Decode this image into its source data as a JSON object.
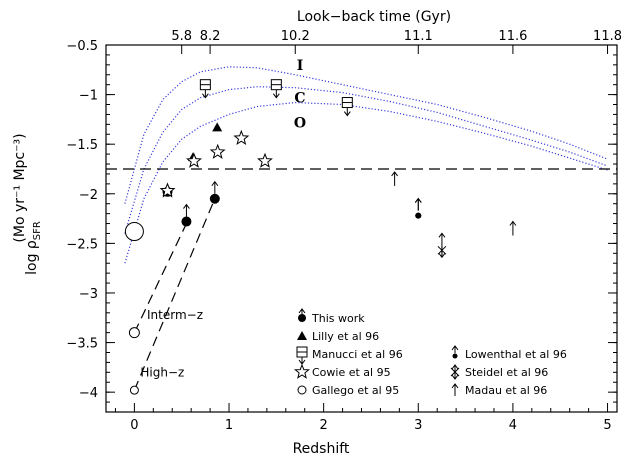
{
  "chart_data": {
    "type": "scatter",
    "title": "",
    "xlabel": "Redshift",
    "ylabel": "log ρ",
    "ylabel_sub": "SFR",
    "ylabel_units": "(Mo yr⁻¹ Mpc⁻³)",
    "top_xlabel": "Look−back time (Gyr)",
    "xlim": [
      -0.3,
      5.1
    ],
    "ylim": [
      -4.2,
      -0.5
    ],
    "x_ticks": [
      0,
      1,
      2,
      3,
      4,
      5
    ],
    "x_tick_labels": [
      "0",
      "1",
      "2",
      "3",
      "4",
      "5"
    ],
    "y_ticks": [
      -0.5,
      -1,
      -1.5,
      -2,
      -2.5,
      -3,
      -3.5,
      -4
    ],
    "y_tick_labels": [
      "−0.5",
      "−1",
      "−1.5",
      "−2",
      "−2.5",
      "−3",
      "−3.5",
      "−4"
    ],
    "top_ticks": [
      {
        "z": 0.5,
        "label": "5.8"
      },
      {
        "z": 0.8,
        "label": "8.2"
      },
      {
        "z": 1.7,
        "label": "10.2"
      },
      {
        "z": 3.0,
        "label": "11.1"
      },
      {
        "z": 4.0,
        "label": "11.6"
      },
      {
        "z": 5.0,
        "label": "11.8"
      }
    ],
    "reference_line": {
      "y": -1.75,
      "style": "dashed"
    },
    "curves": [
      {
        "label": "I",
        "label_at": [
          1.75,
          -0.7
        ],
        "points": [
          [
            -0.1,
            -2.1
          ],
          [
            0.1,
            -1.4
          ],
          [
            0.3,
            -1.05
          ],
          [
            0.5,
            -0.87
          ],
          [
            0.7,
            -0.77
          ],
          [
            1.0,
            -0.72
          ],
          [
            1.3,
            -0.73
          ],
          [
            1.7,
            -0.8
          ],
          [
            2.2,
            -0.9
          ],
          [
            2.7,
            -1.0
          ],
          [
            3.2,
            -1.1
          ],
          [
            3.7,
            -1.23
          ],
          [
            4.2,
            -1.37
          ],
          [
            4.6,
            -1.5
          ],
          [
            5.0,
            -1.65
          ]
        ]
      },
      {
        "label": "C",
        "label_at": [
          1.75,
          -1.03
        ],
        "points": [
          [
            -0.1,
            -2.4
          ],
          [
            0.1,
            -1.75
          ],
          [
            0.3,
            -1.38
          ],
          [
            0.5,
            -1.15
          ],
          [
            0.7,
            -1.03
          ],
          [
            1.0,
            -0.95
          ],
          [
            1.3,
            -0.92
          ],
          [
            1.7,
            -0.93
          ],
          [
            2.2,
            -0.98
          ],
          [
            2.7,
            -1.07
          ],
          [
            3.2,
            -1.18
          ],
          [
            3.7,
            -1.32
          ],
          [
            4.2,
            -1.46
          ],
          [
            4.6,
            -1.58
          ],
          [
            5.0,
            -1.72
          ]
        ]
      },
      {
        "label": "O",
        "label_at": [
          1.75,
          -1.28
        ],
        "points": [
          [
            -0.1,
            -2.7
          ],
          [
            0.1,
            -2.05
          ],
          [
            0.3,
            -1.68
          ],
          [
            0.5,
            -1.45
          ],
          [
            0.7,
            -1.32
          ],
          [
            1.0,
            -1.2
          ],
          [
            1.3,
            -1.12
          ],
          [
            1.7,
            -1.08
          ],
          [
            2.2,
            -1.1
          ],
          [
            2.7,
            -1.17
          ],
          [
            3.2,
            -1.27
          ],
          [
            3.7,
            -1.39
          ],
          [
            4.2,
            -1.52
          ],
          [
            4.6,
            -1.64
          ],
          [
            5.0,
            -1.76
          ]
        ]
      }
    ],
    "extrapolations": [
      {
        "label": "Interm−z",
        "points": [
          [
            0.0,
            -3.4
          ],
          [
            0.55,
            -2.3
          ]
        ],
        "label_at": [
          0.07,
          -3.22
        ]
      },
      {
        "label": "High−z",
        "points": [
          [
            0.0,
            -3.98
          ],
          [
            0.85,
            -2.05
          ]
        ],
        "label_at": [
          0.0,
          -3.8
        ]
      }
    ],
    "series": [
      {
        "name": "This work",
        "marker": "filled-circle",
        "points": [
          {
            "x": 0.35,
            "y": -1.98,
            "r": 5
          },
          {
            "x": 0.55,
            "y": -2.28,
            "r": 5,
            "arrow": "up"
          },
          {
            "x": 0.85,
            "y": -2.05,
            "r": 5,
            "arrow": "up"
          },
          {
            "x": 3.0,
            "y": -2.22,
            "r": 3,
            "arrow": "up"
          }
        ]
      },
      {
        "name": "Lilly et al 96",
        "marker": "filled-triangle",
        "points": [
          {
            "x": 0.35,
            "y": -1.98
          },
          {
            "x": 0.62,
            "y": -1.63
          },
          {
            "x": 0.875,
            "y": -1.33
          }
        ]
      },
      {
        "name": "Manucci et al 96",
        "marker": "open-square",
        "points": [
          {
            "x": 0.75,
            "y": -0.9,
            "arrow": "down"
          },
          {
            "x": 1.5,
            "y": -0.9,
            "arrow": "down"
          },
          {
            "x": 2.25,
            "y": -1.08,
            "arrow": "down"
          }
        ]
      },
      {
        "name": "Cowie et al 95",
        "marker": "open-star",
        "points": [
          {
            "x": 0.35,
            "y": -1.97
          },
          {
            "x": 0.63,
            "y": -1.67
          },
          {
            "x": 0.88,
            "y": -1.58
          },
          {
            "x": 1.13,
            "y": -1.44
          },
          {
            "x": 1.38,
            "y": -1.67
          }
        ]
      },
      {
        "name": "Gallego et al 95",
        "marker": "open-circle",
        "points": [
          {
            "x": 0.0,
            "y": -2.38,
            "r": 9
          },
          {
            "x": 0.0,
            "y": -3.4,
            "r": 5
          },
          {
            "x": 0.0,
            "y": -3.98,
            "r": 4
          }
        ]
      },
      {
        "name": "Lowenthal et al 96",
        "marker": "small-filled-circle",
        "points": [
          {
            "x": 3.0,
            "y": -2.22,
            "arrow": "up"
          }
        ]
      },
      {
        "name": "Steidel et al 96",
        "marker": "cross-star",
        "points": [
          {
            "x": 3.25,
            "y": -2.57,
            "arrow": "both"
          }
        ]
      },
      {
        "name": "Madau et al 96",
        "marker": "arrow-up",
        "points": [
          {
            "x": 2.75,
            "y": -1.85
          },
          {
            "x": 4.0,
            "y": -2.35
          }
        ]
      }
    ],
    "legend": {
      "placement": "bottom-right"
    }
  }
}
